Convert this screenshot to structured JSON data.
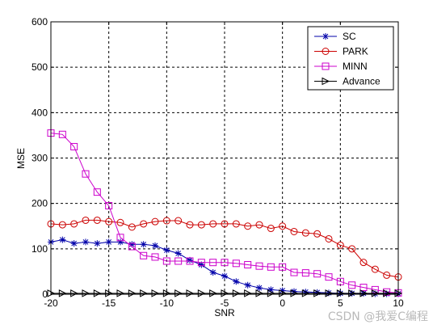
{
  "chart_data": {
    "type": "line",
    "title": "",
    "xlabel": "SNR",
    "ylabel": "MSE",
    "xlim": [
      -20,
      10
    ],
    "ylim": [
      0,
      600
    ],
    "xticks": [
      -20,
      -15,
      -10,
      -5,
      0,
      5,
      10
    ],
    "yticks": [
      0,
      100,
      200,
      300,
      400,
      500,
      600
    ],
    "x": [
      -20,
      -19,
      -18,
      -17,
      -16,
      -15,
      -14,
      -13,
      -12,
      -11,
      -10,
      -9,
      -8,
      -7,
      -6,
      -5,
      -4,
      -3,
      -2,
      -1,
      0,
      1,
      2,
      3,
      4,
      5,
      6,
      7,
      8,
      9,
      10
    ],
    "grid": true,
    "grid_style": "dashed",
    "legend_position": "top-right",
    "series": [
      {
        "name": "SC",
        "color": "#0000aa",
        "marker": "star",
        "values": [
          115,
          120,
          112,
          115,
          112,
          115,
          115,
          110,
          110,
          107,
          97,
          90,
          75,
          65,
          48,
          40,
          28,
          20,
          14,
          10,
          8,
          6,
          5,
          4,
          3,
          2,
          2,
          2,
          1,
          1,
          1
        ]
      },
      {
        "name": "PARK",
        "color": "#cc0000",
        "marker": "circle",
        "values": [
          155,
          153,
          155,
          163,
          163,
          160,
          158,
          148,
          155,
          160,
          162,
          162,
          153,
          153,
          155,
          155,
          155,
          150,
          153,
          145,
          150,
          138,
          135,
          133,
          122,
          108,
          100,
          70,
          55,
          42,
          38
        ]
      },
      {
        "name": "MINN",
        "color": "#cc00cc",
        "marker": "square",
        "values": [
          355,
          352,
          325,
          265,
          225,
          195,
          125,
          105,
          85,
          82,
          73,
          73,
          73,
          70,
          70,
          70,
          68,
          65,
          62,
          60,
          60,
          48,
          47,
          45,
          38,
          28,
          20,
          15,
          10,
          5,
          3
        ]
      },
      {
        "name": "Advance",
        "color": "#000000",
        "marker": "triangle-right",
        "values": [
          2,
          2,
          2,
          2,
          2,
          2,
          2,
          2,
          2,
          2,
          2,
          2,
          2,
          2,
          2,
          2,
          2,
          2,
          2,
          2,
          2,
          2,
          2,
          2,
          2,
          2,
          2,
          2,
          2,
          2,
          2
        ]
      }
    ]
  },
  "watermark": "CSDN @我爱C编程"
}
